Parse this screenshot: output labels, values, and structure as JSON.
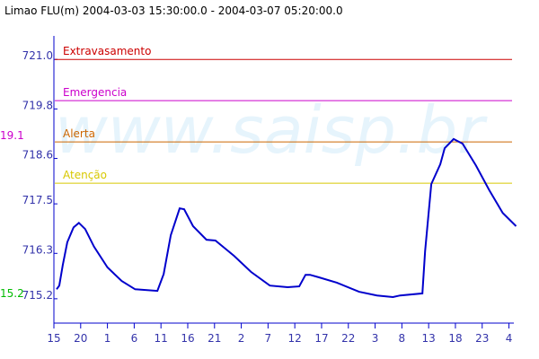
{
  "chart_data": {
    "type": "line",
    "title": "Limao FLU(m) 2004-03-03 15:30:00.0 - 2004-03-07 05:20:00.0",
    "watermark": "www.saisp.br",
    "x": [
      "2004-03-03T15:30",
      "2004-03-03T16:00",
      "2004-03-03T16:40",
      "2004-03-03T17:30",
      "2004-03-03T18:40",
      "2004-03-03T19:40",
      "2004-03-03T20:50",
      "2004-03-03T22:30",
      "2004-03-04T01:00",
      "2004-03-04T03:40",
      "2004-03-04T06:10",
      "2004-03-04T10:20",
      "2004-03-04T11:30",
      "2004-03-04T12:50",
      "2004-03-04T14:30",
      "2004-03-04T15:20",
      "2004-03-04T17:00",
      "2004-03-04T19:30",
      "2004-03-04T21:10",
      "2004-03-05T00:40",
      "2004-03-05T03:50",
      "2004-03-05T07:20",
      "2004-03-05T10:40",
      "2004-03-05T12:50",
      "2004-03-05T14:00",
      "2004-03-05T14:50",
      "2004-03-05T16:30",
      "2004-03-05T19:50",
      "2004-03-06T00:00",
      "2004-03-06T03:20",
      "2004-03-06T06:20",
      "2004-03-06T07:40",
      "2004-03-06T11:50",
      "2004-03-06T12:20",
      "2004-03-06T13:30",
      "2004-03-06T15:10",
      "2004-03-06T16:00",
      "2004-03-06T17:40",
      "2004-03-06T19:20",
      "2004-03-06T21:50",
      "2004-03-07T00:20",
      "2004-03-07T02:50",
      "2004-03-07T05:20"
    ],
    "values": [
      715.43,
      715.52,
      716.02,
      716.57,
      716.93,
      717.04,
      716.89,
      716.46,
      715.96,
      715.63,
      715.43,
      715.39,
      715.8,
      716.74,
      717.39,
      717.37,
      716.96,
      716.63,
      716.61,
      716.24,
      715.85,
      715.52,
      715.48,
      715.5,
      715.78,
      715.78,
      715.72,
      715.59,
      715.37,
      715.28,
      715.24,
      715.28,
      715.33,
      716.35,
      717.98,
      718.46,
      718.85,
      719.07,
      718.96,
      718.43,
      717.83,
      717.28,
      716.96
    ],
    "color": "#0000cc",
    "thresholds": [
      {
        "name": "Extravasamento",
        "value": 721.0,
        "color": "#cc0000"
      },
      {
        "name": "Emergencia",
        "value": 720.0,
        "color": "#cc00cc"
      },
      {
        "name": "Alerta",
        "value": 719.0,
        "color": "#cc6600"
      },
      {
        "name": "Atenção",
        "value": 718.0,
        "color": "#d8c800"
      }
    ],
    "annotations": [
      {
        "text": "19.1",
        "color": "#cc00cc"
      },
      {
        "text": "15.2",
        "color": "#00bb00"
      }
    ],
    "ylim": [
      714.61,
      721.57
    ],
    "yticks": [
      {
        "value": 715.2,
        "label": "715.2"
      },
      {
        "value": 716.3,
        "label": "716.3"
      },
      {
        "value": 717.5,
        "label": "717.5"
      },
      {
        "value": 718.6,
        "label": "718.6"
      },
      {
        "value": 719.8,
        "label": "719.8"
      },
      {
        "value": 721.0,
        "label": "721.0"
      }
    ],
    "xlim": [
      "2004-03-03T15:00",
      "2004-03-07T05:20"
    ],
    "xticks": [
      {
        "value": "2004-03-03T15:00",
        "label": "15"
      },
      {
        "value": "2004-03-03T20:00",
        "label": "20"
      },
      {
        "value": "2004-03-04T01:00",
        "label": "1"
      },
      {
        "value": "2004-03-04T06:00",
        "label": "6"
      },
      {
        "value": "2004-03-04T11:00",
        "label": "11"
      },
      {
        "value": "2004-03-04T16:00",
        "label": "16"
      },
      {
        "value": "2004-03-04T21:00",
        "label": "21"
      },
      {
        "value": "2004-03-05T02:00",
        "label": "2"
      },
      {
        "value": "2004-03-05T07:00",
        "label": "7"
      },
      {
        "value": "2004-03-05T12:00",
        "label": "12"
      },
      {
        "value": "2004-03-05T17:00",
        "label": "17"
      },
      {
        "value": "2004-03-05T22:00",
        "label": "22"
      },
      {
        "value": "2004-03-06T03:00",
        "label": "3"
      },
      {
        "value": "2004-03-06T08:00",
        "label": "8"
      },
      {
        "value": "2004-03-06T13:00",
        "label": "13"
      },
      {
        "value": "2004-03-06T18:00",
        "label": "18"
      },
      {
        "value": "2004-03-06T23:00",
        "label": "23"
      },
      {
        "value": "2004-03-07T04:00",
        "label": "4"
      }
    ]
  }
}
